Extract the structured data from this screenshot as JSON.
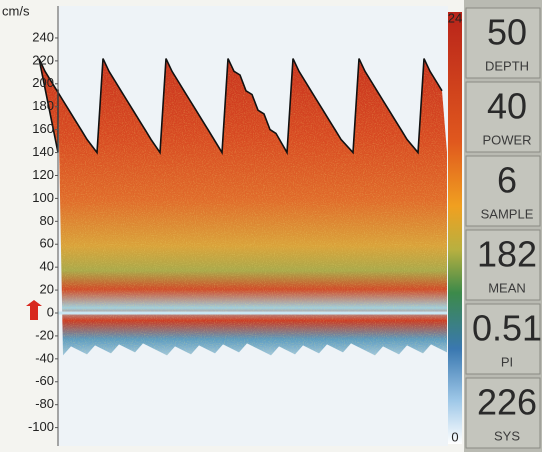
{
  "axis": {
    "unit": "cm/s",
    "ticks": [
      240,
      220,
      200,
      180,
      160,
      140,
      120,
      100,
      80,
      60,
      40,
      20,
      0,
      -20,
      -40,
      -60,
      -80,
      -100
    ]
  },
  "colorbar": {
    "max": "24",
    "min": "0"
  },
  "readouts": [
    {
      "value": "50",
      "label": "DEPTH"
    },
    {
      "value": "40",
      "label": "POWER"
    },
    {
      "value": "6",
      "label": "SAMPLE"
    },
    {
      "value": "182",
      "label": "MEAN"
    },
    {
      "value": "0.51",
      "label": "PI"
    },
    {
      "value": "226",
      "label": "SYS"
    }
  ]
}
